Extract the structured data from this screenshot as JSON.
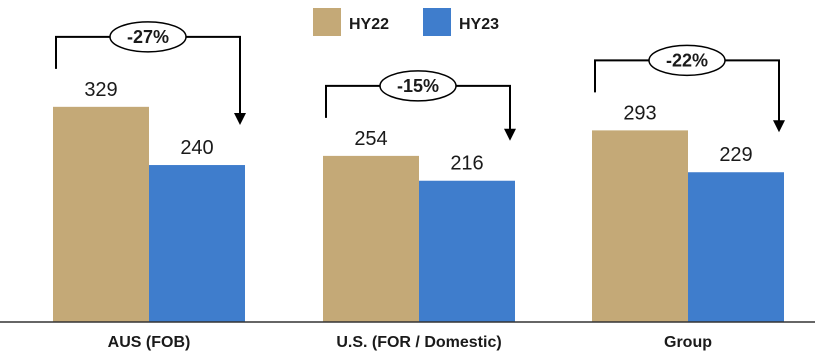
{
  "chart_data": {
    "type": "bar",
    "categories": [
      "AUS (FOB)",
      "U.S. (FOR / Domestic)",
      "Group"
    ],
    "series": [
      {
        "name": "HY22",
        "values": [
          329,
          254,
          293
        ],
        "color": "#c4a977"
      },
      {
        "name": "HY23",
        "values": [
          240,
          216,
          229
        ],
        "color": "#3f7dcc"
      }
    ],
    "changes": [
      "-27%",
      "-15%",
      "-22%"
    ],
    "legend_position": "top-center",
    "grid": false,
    "ylim": [
      0,
      400
    ]
  }
}
